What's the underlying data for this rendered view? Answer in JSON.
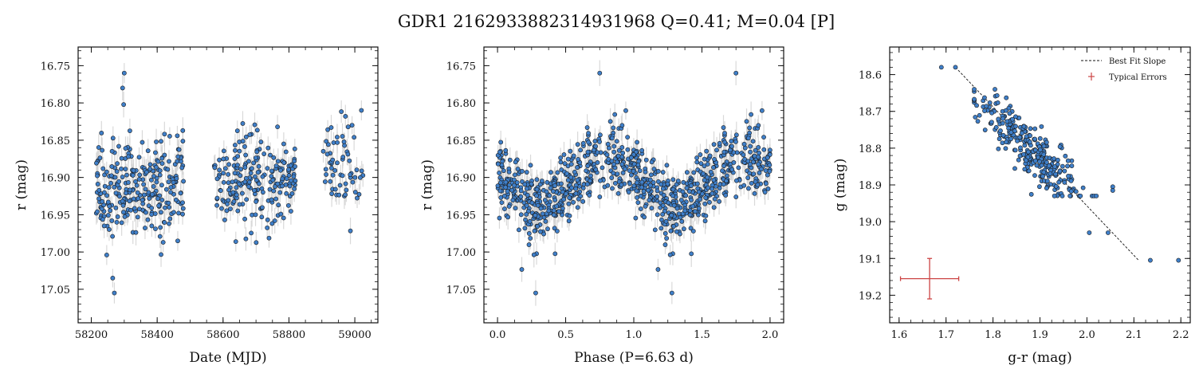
{
  "figure": {
    "title": "GDR1 2162933882314931968  Q=0.41; M=0.04 [P]"
  },
  "colors": {
    "point_fill": "#3f7fc9",
    "point_edge": "#1b1b1b",
    "error_bar": "#cfcfcf",
    "fit_line": "#111111",
    "typical_error": "#cc4444"
  },
  "chart_data": [
    {
      "type": "scatter",
      "xlabel": "Date (MJD)",
      "ylabel": "r (mag)",
      "xlim": [
        58160,
        59070
      ],
      "ylim": [
        17.095,
        16.725
      ],
      "y_inverted": true,
      "xticks": [
        58200,
        58400,
        58600,
        58800,
        59000
      ],
      "yticks": [
        16.75,
        16.8,
        16.85,
        16.9,
        16.95,
        17.0,
        17.05
      ],
      "grid": false,
      "error_bars": true,
      "seasons": [
        {
          "x_range": [
            58215,
            58480
          ],
          "n_points": 260,
          "y_mean": 16.915,
          "y_scatter": 0.035
        },
        {
          "x_range": [
            58570,
            58820
          ],
          "n_points": 210,
          "y_mean": 16.905,
          "y_scatter": 0.03
        },
        {
          "x_range": [
            58900,
            59030
          ],
          "n_points": 60,
          "y_mean": 16.88,
          "y_scatter": 0.035
        }
      ],
      "notable_points": [
        {
          "x": 58300,
          "y": 16.76
        },
        {
          "x": 58295,
          "y": 16.78
        },
        {
          "x": 58270,
          "y": 17.055
        },
        {
          "x": 58265,
          "y": 17.035
        },
        {
          "x": 59020,
          "y": 16.81
        }
      ]
    },
    {
      "type": "scatter",
      "xlabel": "Phase (P=6.63 d)",
      "ylabel": "r (mag)",
      "period_days": 6.63,
      "xlim": [
        -0.1,
        2.1
      ],
      "ylim": [
        17.095,
        16.725
      ],
      "y_inverted": true,
      "xticks": [
        0.0,
        0.5,
        1.0,
        1.5,
        2.0
      ],
      "yticks": [
        16.75,
        16.8,
        16.85,
        16.9,
        16.95,
        17.0,
        17.05
      ],
      "grid": false,
      "error_bars": true,
      "phase_curve": {
        "mean": 16.905,
        "amplitude": 0.035,
        "brightest_phase": 0.8,
        "faintest_phase": 0.3,
        "scatter": 0.025,
        "n_points_per_cycle": 450
      },
      "notable_points": [
        {
          "x": 0.75,
          "y": 16.76
        },
        {
          "x": 1.75,
          "y": 16.76
        },
        {
          "x": 0.28,
          "y": 17.055
        },
        {
          "x": 1.28,
          "y": 17.055
        }
      ]
    },
    {
      "type": "scatter",
      "xlabel": "g-r (mag)",
      "ylabel": "g (mag)",
      "xlim": [
        1.58,
        2.22
      ],
      "ylim": [
        19.275,
        18.525
      ],
      "y_inverted": true,
      "xticks": [
        1.6,
        1.7,
        1.8,
        1.9,
        2.0,
        2.1,
        2.2
      ],
      "yticks": [
        18.6,
        18.7,
        18.8,
        18.9,
        19.0,
        19.1,
        19.2
      ],
      "grid": false,
      "cloud": {
        "center_x": 1.88,
        "center_y": 18.8,
        "n_points": 300,
        "spread_x": 0.05,
        "spread_y": 0.06
      },
      "notable_points": [
        {
          "x": 1.69,
          "y": 18.58
        },
        {
          "x": 1.72,
          "y": 18.58
        },
        {
          "x": 2.005,
          "y": 19.03
        },
        {
          "x": 2.045,
          "y": 19.03
        },
        {
          "x": 2.055,
          "y": 18.905
        },
        {
          "x": 2.055,
          "y": 18.915
        },
        {
          "x": 2.135,
          "y": 19.105
        },
        {
          "x": 2.195,
          "y": 19.105
        }
      ],
      "best_fit_line": {
        "x": [
          1.72,
          2.11
        ],
        "y": [
          18.58,
          19.105
        ]
      },
      "typical_error": {
        "x": 1.665,
        "y": 19.155,
        "xerr": 0.062,
        "yerr": 0.055
      },
      "legend": {
        "position": "top-right",
        "entries": [
          {
            "label": "Best Fit Slope",
            "style": "dashed-line"
          },
          {
            "label": "Typical Errors",
            "style": "errorbar"
          }
        ]
      }
    }
  ]
}
